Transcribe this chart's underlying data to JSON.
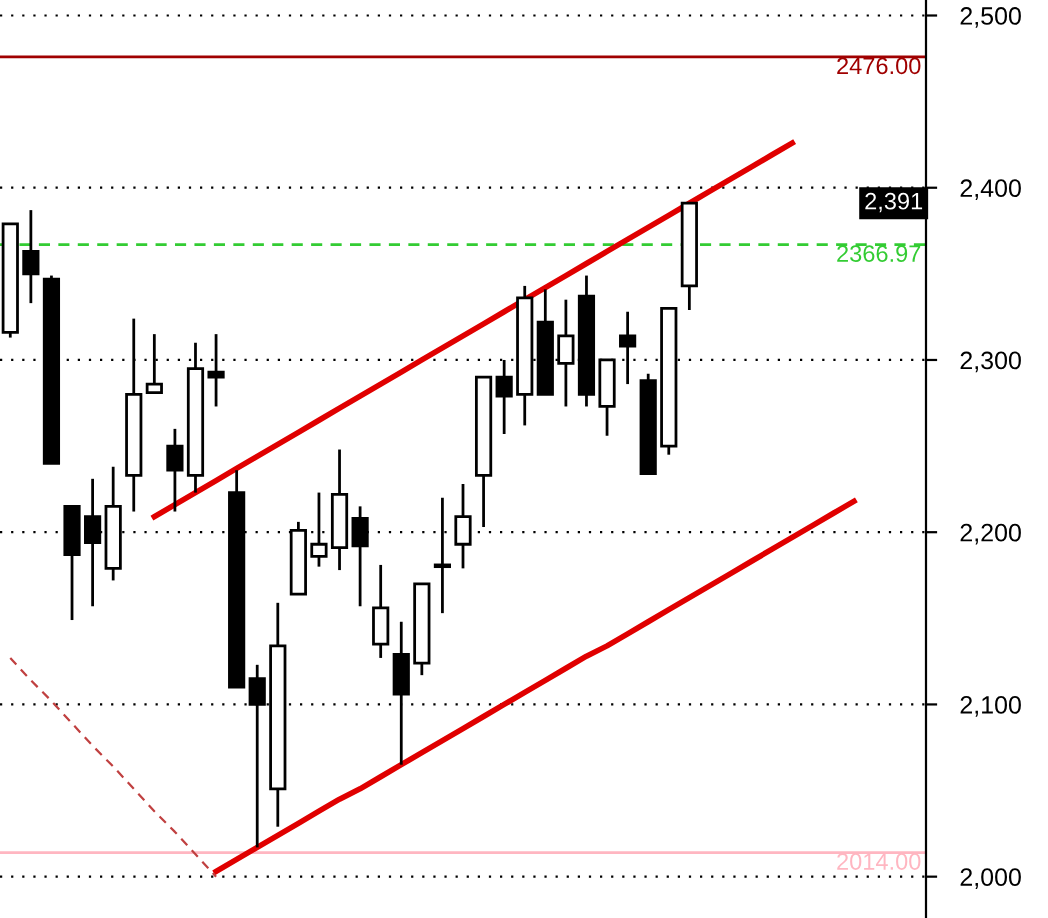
{
  "chart_data": {
    "type": "candlestick",
    "categories": [
      null,
      null,
      null,
      null,
      null,
      null,
      null,
      null,
      null,
      null,
      null,
      null,
      null,
      null,
      null,
      null,
      null,
      null,
      null,
      null,
      null,
      null,
      null,
      null,
      null,
      null,
      null,
      null,
      null,
      null,
      null,
      null,
      null,
      null,
      null,
      null,
      null,
      null,
      null,
      null,
      null,
      null,
      null,
      null,
      null
    ],
    "ohlc": [
      [
        2316,
        2379,
        2313,
        2379
      ],
      [
        2363,
        2387,
        2333,
        2350
      ],
      [
        2347,
        2349,
        2240,
        2240
      ],
      [
        2215,
        2215,
        2149,
        2187
      ],
      [
        2209,
        2231,
        2157,
        2194
      ],
      [
        2179,
        2238,
        2172,
        2215
      ],
      [
        2233,
        2324,
        2212,
        2280
      ],
      [
        2281,
        2315,
        2281,
        2286
      ],
      [
        2250,
        2260,
        2212,
        2236
      ],
      [
        2233,
        2310,
        2223,
        2295
      ],
      [
        2293,
        2315,
        2273,
        2290
      ],
      [
        2223,
        2236,
        2110,
        2110
      ],
      [
        2115,
        2123,
        2017,
        2100
      ],
      [
        2051,
        2159,
        2029,
        2134
      ],
      [
        2164,
        2206,
        2164,
        2201
      ],
      [
        2186,
        2223,
        2180,
        2193
      ],
      [
        2191,
        2248,
        2178,
        2222
      ],
      [
        2208,
        2215,
        2157,
        2192
      ],
      [
        2135,
        2181,
        2127,
        2156
      ],
      [
        2129,
        2148,
        2065,
        2106
      ],
      [
        2124,
        2170,
        2117,
        2170
      ],
      [
        2180,
        2220,
        2153,
        2181
      ],
      [
        2193,
        2228,
        2179,
        2209
      ],
      [
        2233,
        2290,
        2203,
        2290
      ],
      [
        2290,
        2300,
        2257,
        2279
      ],
      [
        2280,
        2343,
        2262,
        2336
      ],
      [
        2322,
        2341,
        2280,
        2280
      ],
      [
        2298,
        2335,
        2273,
        2314
      ],
      [
        2337,
        2349,
        2273,
        2280
      ],
      [
        2273,
        2300,
        2256,
        2300
      ],
      [
        2314,
        2328,
        2286,
        2308
      ],
      [
        2288,
        2292,
        2234,
        2234
      ],
      [
        2250,
        2330,
        2245,
        2330
      ],
      [
        2343,
        2391,
        2329,
        2391
      ],
      null,
      null,
      null,
      null,
      null,
      null,
      null,
      null,
      null,
      null,
      null
    ],
    "series": [
      {
        "type": "line",
        "color": "#e00000",
        "values": [
          null,
          null,
          null,
          null,
          null,
          null,
          null,
          2209,
          2216,
          2223,
          2230,
          2237,
          2244,
          2251,
          2258,
          2265,
          2272,
          2279,
          2286,
          2293,
          2300,
          2307,
          2314,
          2321,
          2328,
          2335,
          2342,
          2349,
          2356,
          2363,
          2370,
          2377,
          2384,
          2391,
          2398,
          2405,
          2412,
          2419,
          2426,
          null,
          null,
          null,
          null,
          null,
          null
        ]
      },
      {
        "type": "line",
        "color": "#e00000",
        "values": [
          null,
          null,
          null,
          null,
          null,
          null,
          null,
          null,
          null,
          null,
          2003,
          2010,
          2017,
          2024,
          2031,
          2038,
          2045,
          2051,
          2058,
          2065,
          2072,
          2079,
          2086,
          2093,
          2100,
          2107,
          2114,
          2121,
          2128,
          2134,
          2141,
          2148,
          2155,
          2162,
          2169,
          2176,
          2183,
          2190,
          2197,
          2204,
          2211,
          2218,
          null,
          null,
          null
        ]
      },
      {
        "type": "line",
        "color": "#c04040",
        "line_style": "dashed",
        "values": [
          2127,
          2114,
          2102,
          2089,
          2076,
          2064,
          2051,
          2038,
          2026,
          2013,
          2000,
          null,
          null,
          null,
          null,
          null,
          null,
          null,
          null,
          null,
          null,
          null,
          null,
          null,
          null,
          null,
          null,
          null,
          null,
          null,
          null,
          null,
          null,
          null,
          null,
          null,
          null,
          null,
          null,
          null,
          null,
          null,
          null,
          null,
          null
        ]
      }
    ],
    "ylim": [
      1976,
      2509
    ],
    "yticks": [
      {
        "value": 2000,
        "label": "2,000"
      },
      {
        "value": 2100,
        "label": "2,100"
      },
      {
        "value": 2200,
        "label": "2,200"
      },
      {
        "value": 2300,
        "label": "2,300"
      },
      {
        "value": 2400,
        "label": "2,400"
      },
      {
        "value": 2500,
        "label": "2,500"
      }
    ],
    "grid": "y",
    "ref_lines": [
      {
        "axis": "y",
        "value": 2476,
        "label": "2476.00",
        "color": "#a00000",
        "line_style": "solid"
      },
      {
        "axis": "y",
        "value": 2366.97,
        "label": "2366.97",
        "color": "#33cc33",
        "line_style": "dashed"
      },
      {
        "axis": "y",
        "value": 2014,
        "label": "2014.00",
        "color": "#ffb6c1",
        "line_style": "solid"
      }
    ],
    "annotations": [
      {
        "text": "2,391",
        "y": 2391
      }
    ]
  }
}
